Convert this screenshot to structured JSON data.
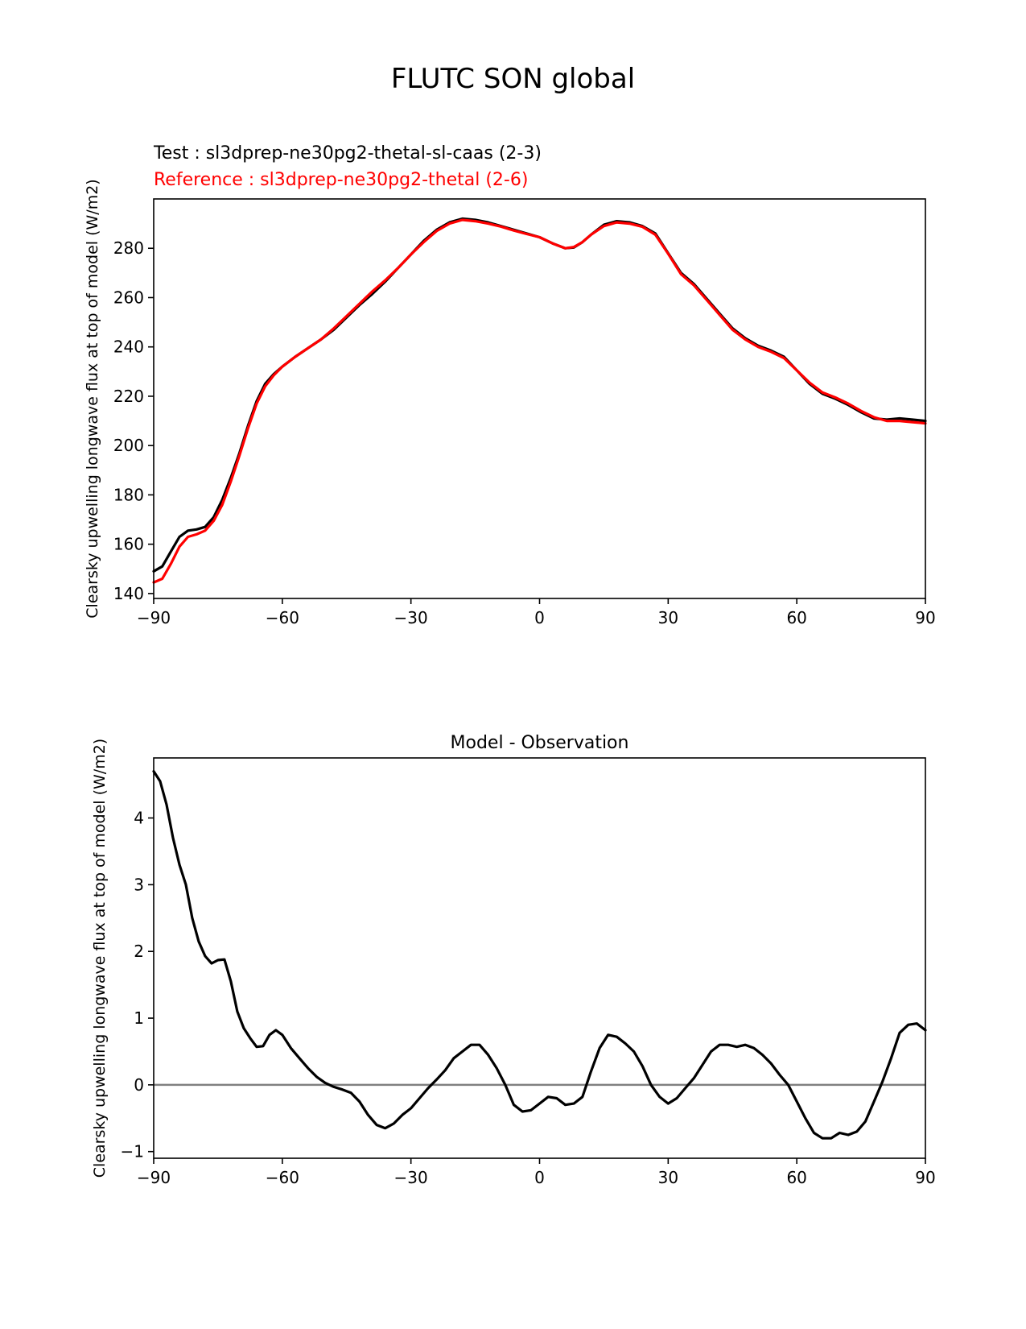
{
  "figure": {
    "title": "FLUTC SON global"
  },
  "chart_data": [
    {
      "type": "line",
      "subtitle_test": "Test : sl3dprep-ne30pg2-thetal-sl-caas (2-3)",
      "subtitle_reference": "Reference : sl3dprep-ne30pg2-thetal (2-6)",
      "xlabel": "",
      "ylabel": "Clearsky upwelling longwave flux at top of model (W/m2)",
      "xlim": [
        -90,
        90
      ],
      "ylim": [
        138,
        300
      ],
      "xticks": [
        -90,
        -60,
        -30,
        0,
        30,
        60,
        90
      ],
      "xtick_labels": [
        "−90",
        "−60",
        "−30",
        "0",
        "30",
        "60",
        "90"
      ],
      "yticks": [
        140,
        160,
        180,
        200,
        220,
        240,
        260,
        280
      ],
      "ytick_labels": [
        "140",
        "160",
        "180",
        "200",
        "220",
        "240",
        "260",
        "280"
      ],
      "grid": false,
      "series": [
        {
          "name": "Test : sl3dprep-ne30pg2-thetal-sl-caas (2-3)",
          "color": "#000000",
          "x": [
            -90,
            -88,
            -86,
            -84,
            -82,
            -80,
            -78,
            -76,
            -74,
            -72,
            -70,
            -68,
            -66,
            -64,
            -62,
            -60,
            -57,
            -54,
            -51,
            -48,
            -45,
            -42,
            -39,
            -36,
            -33,
            -30,
            -27,
            -24,
            -21,
            -18,
            -15,
            -12,
            -9,
            -6,
            -3,
            0,
            3,
            6,
            8,
            10,
            12,
            15,
            18,
            21,
            24,
            27,
            30,
            33,
            36,
            39,
            42,
            45,
            48,
            51,
            54,
            57,
            60,
            63,
            66,
            69,
            72,
            75,
            78,
            81,
            84,
            87,
            90
          ],
          "values": [
            149,
            151,
            157,
            163,
            165.5,
            166,
            167,
            171,
            178,
            187,
            197,
            208,
            218,
            225,
            229,
            232,
            236,
            239.5,
            243,
            247,
            252,
            257,
            261.5,
            266.5,
            272,
            277.5,
            283,
            287.5,
            290.5,
            292,
            291.5,
            290.5,
            289,
            287.5,
            286,
            284.5,
            282,
            280,
            280.3,
            282.5,
            285.5,
            289.5,
            291,
            290.5,
            289,
            286,
            278,
            270,
            265.5,
            259.5,
            253.5,
            247.5,
            243.5,
            240.5,
            238.5,
            236,
            230.5,
            225,
            221,
            219,
            216.5,
            213.5,
            211,
            210.5,
            211,
            210.5,
            210
          ]
        },
        {
          "name": "Reference : sl3dprep-ne30pg2-thetal (2-6)",
          "color": "#ff0000",
          "x": [
            -90,
            -88,
            -86,
            -84,
            -82,
            -80,
            -78,
            -76,
            -74,
            -72,
            -70,
            -68,
            -66,
            -64,
            -62,
            -60,
            -57,
            -54,
            -51,
            -48,
            -45,
            -42,
            -39,
            -36,
            -33,
            -30,
            -27,
            -24,
            -21,
            -18,
            -15,
            -12,
            -9,
            -6,
            -3,
            0,
            3,
            6,
            8,
            10,
            12,
            15,
            18,
            21,
            24,
            27,
            30,
            33,
            36,
            39,
            42,
            45,
            48,
            51,
            54,
            57,
            60,
            63,
            66,
            69,
            72,
            75,
            78,
            81,
            84,
            87,
            90
          ],
          "values": [
            144.5,
            146,
            152,
            159,
            163,
            164,
            165.5,
            169.5,
            176,
            185.5,
            196,
            207,
            217,
            224,
            228.5,
            232,
            236,
            239.5,
            243,
            247.5,
            252.5,
            257.5,
            262.5,
            267,
            272,
            277.5,
            282.5,
            287,
            290,
            291.5,
            291,
            290,
            288.8,
            287.2,
            285.8,
            284.5,
            282,
            280,
            280.5,
            282.5,
            285.5,
            289,
            290.5,
            290,
            288.7,
            285.5,
            277.8,
            269.5,
            265,
            259,
            253,
            247,
            243,
            240,
            238,
            235.5,
            230.5,
            225.5,
            221.5,
            219.5,
            217,
            214,
            211.5,
            210,
            210,
            209.5,
            209
          ]
        }
      ]
    },
    {
      "type": "line",
      "title": "Model - Observation",
      "xlabel": "",
      "ylabel": "Clearsky upwelling longwave flux at top of model (W/m2)",
      "xlim": [
        -90,
        90
      ],
      "ylim": [
        -1.1,
        4.9
      ],
      "xticks": [
        -90,
        -60,
        -30,
        0,
        30,
        60,
        90
      ],
      "xtick_labels": [
        "−90",
        "−60",
        "−30",
        "0",
        "30",
        "60",
        "90"
      ],
      "yticks": [
        -1,
        0,
        1,
        2,
        3,
        4
      ],
      "ytick_labels": [
        "−1",
        "0",
        "1",
        "2",
        "3",
        "4"
      ],
      "grid": false,
      "zero_line_color": "#808080",
      "series": [
        {
          "name": "",
          "color": "#000000",
          "x": [
            -90,
            -88.5,
            -87,
            -85.5,
            -84,
            -82.5,
            -81,
            -79.5,
            -78,
            -76.5,
            -75,
            -73.5,
            -72,
            -70.5,
            -69,
            -67.5,
            -66,
            -64.5,
            -63,
            -61.5,
            -60,
            -58,
            -56,
            -54,
            -52,
            -50,
            -48,
            -46,
            -44,
            -42,
            -40,
            -38,
            -36,
            -34,
            -32,
            -30,
            -28,
            -26,
            -24,
            -22,
            -20,
            -18,
            -16,
            -14,
            -12,
            -10,
            -8,
            -6,
            -4,
            -2,
            0,
            2,
            4,
            6,
            8,
            10,
            12,
            14,
            16,
            18,
            20,
            22,
            24,
            26,
            28,
            30,
            32,
            34,
            36,
            38,
            40,
            42,
            44,
            46,
            48,
            50,
            52,
            54,
            56,
            58,
            60,
            62,
            64,
            66,
            68,
            70,
            72,
            74,
            76,
            78,
            80,
            82,
            84,
            86,
            88,
            90
          ],
          "values": [
            4.7,
            4.55,
            4.2,
            3.7,
            3.3,
            3.0,
            2.5,
            2.15,
            1.93,
            1.82,
            1.87,
            1.88,
            1.55,
            1.1,
            0.85,
            0.7,
            0.57,
            0.58,
            0.75,
            0.82,
            0.75,
            0.55,
            0.4,
            0.25,
            0.12,
            0.03,
            -0.03,
            -0.07,
            -0.12,
            -0.25,
            -0.45,
            -0.6,
            -0.65,
            -0.58,
            -0.45,
            -0.35,
            -0.2,
            -0.05,
            0.08,
            0.22,
            0.4,
            0.5,
            0.6,
            0.6,
            0.45,
            0.25,
            0.0,
            -0.3,
            -0.4,
            -0.38,
            -0.28,
            -0.18,
            -0.2,
            -0.3,
            -0.28,
            -0.18,
            0.2,
            0.55,
            0.75,
            0.72,
            0.62,
            0.5,
            0.28,
            0.0,
            -0.18,
            -0.28,
            -0.2,
            -0.05,
            0.1,
            0.3,
            0.5,
            0.6,
            0.6,
            0.57,
            0.6,
            0.55,
            0.45,
            0.32,
            0.15,
            0.0,
            -0.25,
            -0.5,
            -0.72,
            -0.8,
            -0.8,
            -0.72,
            -0.75,
            -0.7,
            -0.55,
            -0.25,
            0.05,
            0.4,
            0.78,
            0.9,
            0.92,
            0.82
          ]
        }
      ]
    }
  ]
}
